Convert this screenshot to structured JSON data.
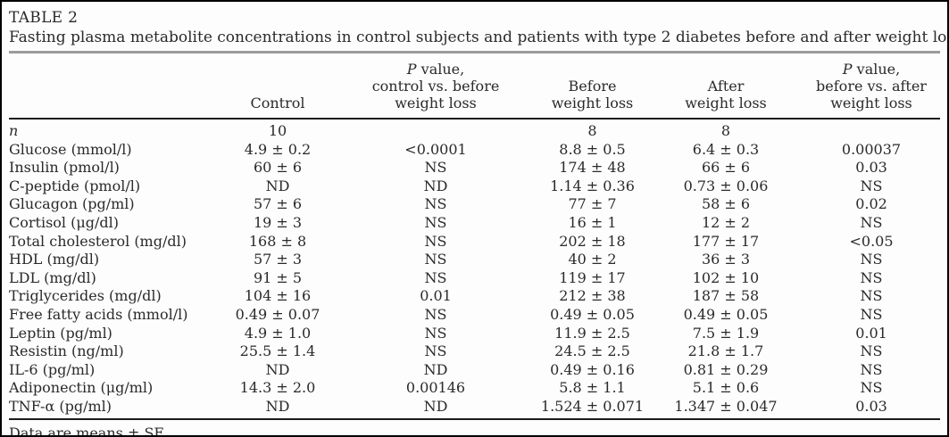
{
  "table": {
    "label": "TABLE 2",
    "caption": "Fasting plasma metabolite concentrations in control subjects and patients with type 2 diabetes before and after weight loss",
    "headers": {
      "control": "Control",
      "p_control_vs_before": {
        "line1_italic": "P",
        "line1_rest": " value,",
        "line2": "control vs. before",
        "line3": "weight loss"
      },
      "before": {
        "line1": "Before",
        "line2": "weight loss"
      },
      "after": {
        "line1": "After",
        "line2": "weight loss"
      },
      "p_before_vs_after": {
        "line1_italic": "P",
        "line1_rest": " value,",
        "line2": "before vs. after",
        "line3": "weight loss"
      }
    },
    "rows": [
      {
        "label": "n",
        "label_italic": true,
        "control": "10",
        "p1": "",
        "before": "8",
        "after": "8",
        "p2": ""
      },
      {
        "label": "Glucose (mmol/l)",
        "control": "4.9 ± 0.2",
        "p1": "<0.0001",
        "before": "8.8 ± 0.5",
        "after": "6.4 ± 0.3",
        "p2": "0.00037"
      },
      {
        "label": "Insulin (pmol/l)",
        "control": "60 ± 6",
        "p1": "NS",
        "before": "174 ± 48",
        "after": "66 ± 6",
        "p2": "0.03"
      },
      {
        "label": "C-peptide (pmol/l)",
        "control": "ND",
        "p1": "ND",
        "before": "1.14 ± 0.36",
        "after": "0.73 ± 0.06",
        "p2": "NS"
      },
      {
        "label": "Glucagon (pg/ml)",
        "control": "57 ± 6",
        "p1": "NS",
        "before": "77 ± 7",
        "after": "58 ± 6",
        "p2": "0.02"
      },
      {
        "label": "Cortisol (μg/dl)",
        "control": "19 ± 3",
        "p1": "NS",
        "before": "16 ± 1",
        "after": "12 ± 2",
        "p2": "NS"
      },
      {
        "label": "Total cholesterol (mg/dl)",
        "control": "168 ± 8",
        "p1": "NS",
        "before": "202 ± 18",
        "after": "177 ± 17",
        "p2": "<0.05"
      },
      {
        "label": "HDL (mg/dl)",
        "control": "57 ± 3",
        "p1": "NS",
        "before": "40 ± 2",
        "after": "36 ± 3",
        "p2": "NS"
      },
      {
        "label": "LDL (mg/dl)",
        "control": "91 ± 5",
        "p1": "NS",
        "before": "119 ± 17",
        "after": "102 ± 10",
        "p2": "NS"
      },
      {
        "label": "Triglycerides (mg/dl)",
        "control": "104 ± 16",
        "p1": "0.01",
        "before": "212 ± 38",
        "after": "187 ± 58",
        "p2": "NS"
      },
      {
        "label": "Free fatty acids (mmol/l)",
        "control": "0.49 ± 0.07",
        "p1": "NS",
        "before": "0.49 ± 0.05",
        "after": "0.49 ± 0.05",
        "p2": "NS"
      },
      {
        "label": "Leptin (pg/ml)",
        "control": "4.9 ± 1.0",
        "p1": "NS",
        "before": "11.9 ± 2.5",
        "after": "7.5 ± 1.9",
        "p2": "0.01"
      },
      {
        "label": "Resistin (ng/ml)",
        "control": "25.5 ± 1.4",
        "p1": "NS",
        "before": "24.5 ± 2.5",
        "after": "21.8 ± 1.7",
        "p2": "NS"
      },
      {
        "label": "IL-6 (pg/ml)",
        "control": "ND",
        "p1": "ND",
        "before": "0.49 ± 0.16",
        "after": "0.81 ± 0.29",
        "p2": "NS"
      },
      {
        "label": "Adiponectin (μg/ml)",
        "control": "14.3 ± 2.0",
        "p1": "0.00146",
        "before": "5.8 ± 1.1",
        "after": "5.1 ± 0.6",
        "p2": "NS"
      },
      {
        "label": "TNF-α (pg/ml)",
        "control": "ND",
        "p1": "ND",
        "before": "1.524 ± 0.071",
        "after": "1.347 ± 0.047",
        "p2": "0.03"
      }
    ],
    "footnote": "Data are means ± SE.",
    "colors": {
      "text": "#2a2a2a",
      "frame": "#000000",
      "caption_rule": "#9b9b9b",
      "header_rule": "#1c1c1c",
      "background": "#fdfdfd"
    }
  }
}
